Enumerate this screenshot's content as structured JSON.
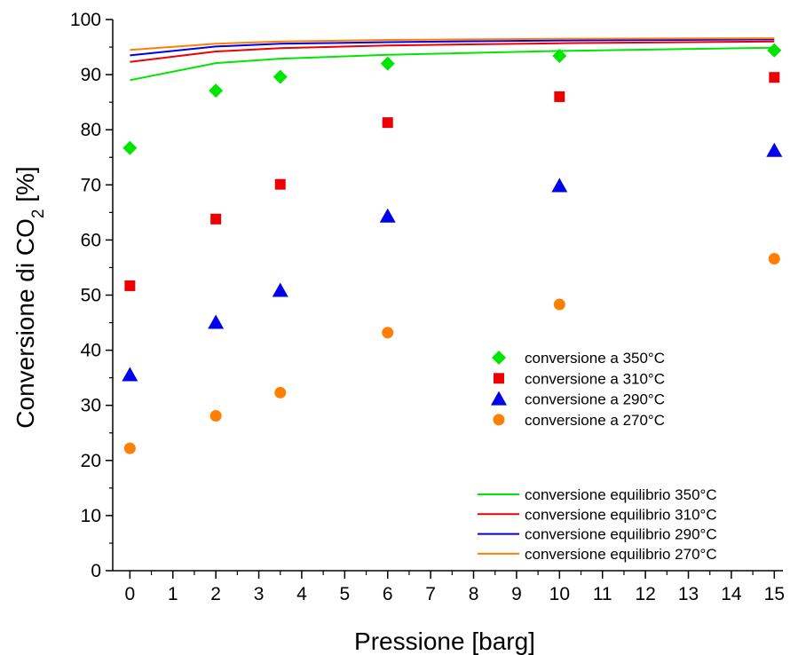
{
  "chart_data": {
    "type": "scatter",
    "xlabel": "Pressione [barg]",
    "ylabel": "Conversione di CO",
    "ylabel_subscript": "2",
    "ylabel_suffix": " [%]",
    "xlim": [
      -0.4,
      15.2
    ],
    "ylim": [
      0,
      100
    ],
    "xticks": [
      0,
      1,
      2,
      3,
      4,
      5,
      6,
      7,
      8,
      9,
      10,
      11,
      12,
      13,
      14,
      15
    ],
    "yticks": [
      0,
      10,
      20,
      30,
      40,
      50,
      60,
      70,
      80,
      90,
      100
    ],
    "grid": false,
    "legend_position": "center-right",
    "series": [
      {
        "name": "conversione a 350°C",
        "kind": "markers",
        "marker": "diamond",
        "color": "#00e600",
        "x": [
          0,
          2,
          3.5,
          6,
          10,
          15
        ],
        "y": [
          76.7,
          87.1,
          89.6,
          92.0,
          93.4,
          94.4
        ]
      },
      {
        "name": "conversione a 310°C",
        "kind": "markers",
        "marker": "square",
        "color": "#ee0000",
        "x": [
          0,
          2,
          3.5,
          6,
          10,
          15
        ],
        "y": [
          51.7,
          63.8,
          70.1,
          81.3,
          86.0,
          89.5
        ]
      },
      {
        "name": "conversione a 290°C",
        "kind": "markers",
        "marker": "triangle",
        "color": "#0000ee",
        "x": [
          0,
          2,
          3.5,
          6,
          10,
          15
        ],
        "y": [
          35.5,
          45.0,
          50.8,
          64.3,
          69.8,
          76.2
        ]
      },
      {
        "name": "conversione a 270°C",
        "kind": "markers",
        "marker": "circle",
        "color": "#ff8000",
        "x": [
          0,
          2,
          3.5,
          6,
          10,
          15
        ],
        "y": [
          22.2,
          28.1,
          32.3,
          43.2,
          48.3,
          56.6
        ]
      },
      {
        "name": "conversione equilibrio 350°C",
        "kind": "line",
        "color": "#00e600",
        "x": [
          0,
          2,
          3.5,
          6,
          10,
          15
        ],
        "y": [
          89.0,
          92.1,
          92.9,
          93.6,
          94.3,
          94.9
        ]
      },
      {
        "name": "conversione equilibrio 310°C",
        "kind": "line",
        "color": "#ee0000",
        "x": [
          0,
          2,
          3.5,
          6,
          10,
          15
        ],
        "y": [
          92.3,
          94.2,
          94.8,
          95.3,
          95.7,
          96.0
        ]
      },
      {
        "name": "conversione equilibrio 290°C",
        "kind": "line",
        "color": "#0000ee",
        "x": [
          0,
          2,
          3.5,
          6,
          10,
          15
        ],
        "y": [
          93.5,
          95.1,
          95.6,
          95.9,
          96.2,
          96.4
        ]
      },
      {
        "name": "conversione equilibrio 270°C",
        "kind": "line",
        "color": "#ff8000",
        "x": [
          0,
          2,
          3.5,
          6,
          10,
          15
        ],
        "y": [
          94.5,
          95.6,
          96.0,
          96.3,
          96.5,
          96.6
        ]
      }
    ]
  }
}
